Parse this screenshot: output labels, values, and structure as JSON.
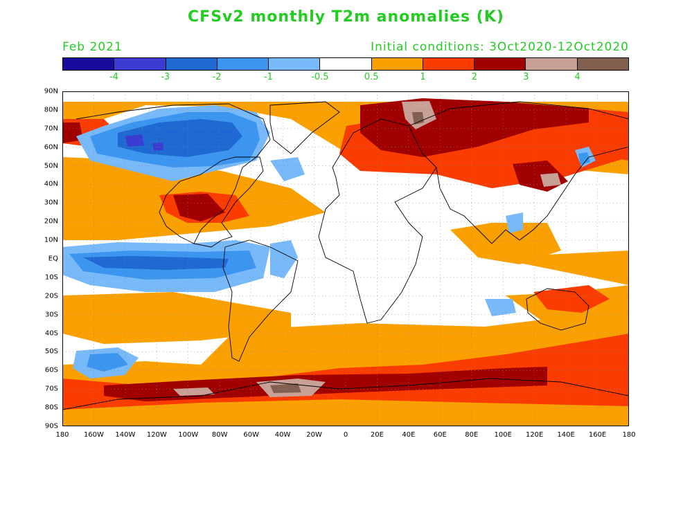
{
  "title": "CFSv2 monthly T2m anomalies (K)",
  "month": "Feb 2021",
  "initial_conditions": "Initial conditions: 3Oct2020-12Oct2020",
  "colorbar": {
    "colors": [
      "#1a0a9e",
      "#3c3cd2",
      "#1f6ad2",
      "#3c96f0",
      "#78b9fa",
      "#ffffff",
      "#faa000",
      "#fa3c00",
      "#a00000",
      "#c8a096",
      "#826050"
    ],
    "labels": [
      "-4",
      "-3",
      "-2",
      "-1",
      "-0.5",
      "0.5",
      "1",
      "2",
      "3",
      "4"
    ]
  },
  "axes": {
    "lat_labels": [
      "90N",
      "80N",
      "70N",
      "60N",
      "50N",
      "40N",
      "30N",
      "20N",
      "10N",
      "EQ",
      "10S",
      "20S",
      "30S",
      "40S",
      "50S",
      "60S",
      "70S",
      "80S",
      "90S"
    ],
    "lon_labels": [
      "180",
      "160W",
      "140W",
      "120W",
      "100W",
      "80W",
      "60W",
      "40W",
      "20W",
      "0",
      "20E",
      "40E",
      "60E",
      "80E",
      "100E",
      "120E",
      "140E",
      "160E",
      "180"
    ]
  }
}
